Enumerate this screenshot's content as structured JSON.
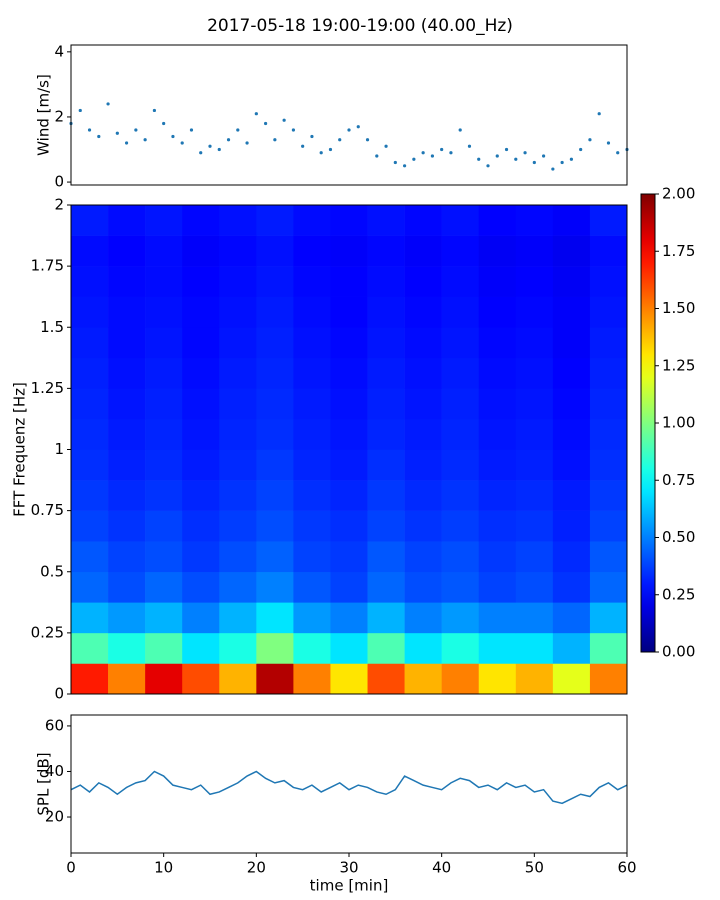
{
  "chart_data": [
    {
      "type": "scatter",
      "title": "2017-05-18 19:00-19:00 (40.00_Hz)",
      "ylabel": "Wind [m/s]",
      "color": "#1f77b4",
      "x": [
        0,
        1,
        2,
        3,
        4,
        5,
        6,
        7,
        8,
        9,
        10,
        11,
        12,
        13,
        14,
        15,
        16,
        17,
        18,
        19,
        20,
        21,
        22,
        23,
        24,
        25,
        26,
        27,
        28,
        29,
        30,
        31,
        32,
        33,
        34,
        35,
        36,
        37,
        38,
        39,
        40,
        41,
        42,
        43,
        44,
        45,
        46,
        47,
        48,
        49,
        50,
        51,
        52,
        53,
        54,
        55,
        56,
        57,
        58,
        59,
        60
      ],
      "values": [
        1.8,
        2.2,
        1.6,
        1.4,
        2.4,
        1.5,
        1.2,
        1.6,
        1.3,
        2.2,
        1.8,
        1.4,
        1.2,
        1.6,
        0.9,
        1.1,
        1.0,
        1.3,
        1.6,
        1.2,
        2.1,
        1.8,
        1.3,
        1.9,
        1.6,
        1.1,
        1.4,
        0.9,
        1.0,
        1.3,
        1.6,
        1.7,
        1.3,
        0.8,
        1.1,
        0.6,
        0.5,
        0.7,
        0.9,
        0.8,
        1.0,
        0.9,
        1.6,
        1.1,
        0.7,
        0.5,
        0.8,
        1.0,
        0.7,
        0.9,
        0.6,
        0.8,
        0.4,
        0.6,
        0.7,
        1.0,
        1.3,
        2.1,
        1.2,
        0.9,
        1.0
      ],
      "xlim": [
        0,
        60
      ],
      "ylim": [
        -0.09,
        4.21
      ],
      "yticks": [
        0,
        2,
        4
      ]
    },
    {
      "type": "heatmap",
      "ylabel": "FFT Frequenz [Hz]",
      "colormap": "jet",
      "xbins": [
        0,
        4,
        8,
        12,
        16,
        20,
        24,
        28,
        32,
        36,
        40,
        44,
        48,
        52,
        56,
        60
      ],
      "ybins": [
        0,
        0.125,
        0.25,
        0.375,
        0.5,
        0.625,
        0.75,
        0.875,
        1,
        1.125,
        1.25,
        1.375,
        1.5,
        1.625,
        1.75,
        1.875,
        2
      ],
      "values": [
        [
          1.7,
          1.5,
          1.8,
          1.6,
          1.4,
          1.9,
          1.5,
          1.3,
          1.6,
          1.4,
          1.5,
          1.3,
          1.4,
          1.2,
          1.5
        ],
        [
          0.9,
          0.8,
          0.9,
          0.7,
          0.8,
          1.0,
          0.8,
          0.7,
          0.9,
          0.7,
          0.8,
          0.7,
          0.7,
          0.6,
          0.9
        ],
        [
          0.6,
          0.55,
          0.6,
          0.5,
          0.6,
          0.7,
          0.55,
          0.5,
          0.6,
          0.5,
          0.55,
          0.5,
          0.5,
          0.45,
          0.6
        ],
        [
          0.45,
          0.4,
          0.45,
          0.4,
          0.45,
          0.5,
          0.42,
          0.38,
          0.45,
          0.4,
          0.42,
          0.38,
          0.4,
          0.35,
          0.45
        ],
        [
          0.42,
          0.38,
          0.4,
          0.36,
          0.4,
          0.44,
          0.38,
          0.36,
          0.42,
          0.38,
          0.4,
          0.36,
          0.38,
          0.33,
          0.42
        ],
        [
          0.38,
          0.35,
          0.38,
          0.34,
          0.37,
          0.4,
          0.36,
          0.34,
          0.38,
          0.35,
          0.37,
          0.34,
          0.35,
          0.31,
          0.38
        ],
        [
          0.36,
          0.33,
          0.35,
          0.32,
          0.35,
          0.38,
          0.34,
          0.32,
          0.36,
          0.33,
          0.35,
          0.32,
          0.33,
          0.3,
          0.36
        ],
        [
          0.34,
          0.31,
          0.33,
          0.3,
          0.33,
          0.36,
          0.32,
          0.3,
          0.34,
          0.31,
          0.33,
          0.3,
          0.31,
          0.28,
          0.34
        ],
        [
          0.33,
          0.3,
          0.32,
          0.29,
          0.32,
          0.34,
          0.31,
          0.29,
          0.32,
          0.3,
          0.32,
          0.29,
          0.3,
          0.27,
          0.33
        ],
        [
          0.32,
          0.29,
          0.31,
          0.28,
          0.31,
          0.33,
          0.3,
          0.28,
          0.31,
          0.29,
          0.31,
          0.28,
          0.29,
          0.26,
          0.32
        ],
        [
          0.31,
          0.28,
          0.3,
          0.27,
          0.3,
          0.32,
          0.29,
          0.27,
          0.3,
          0.28,
          0.3,
          0.27,
          0.28,
          0.25,
          0.31
        ],
        [
          0.3,
          0.27,
          0.29,
          0.26,
          0.29,
          0.31,
          0.28,
          0.26,
          0.29,
          0.27,
          0.29,
          0.26,
          0.27,
          0.24,
          0.3
        ],
        [
          0.29,
          0.27,
          0.28,
          0.26,
          0.28,
          0.3,
          0.27,
          0.25,
          0.28,
          0.26,
          0.28,
          0.25,
          0.26,
          0.24,
          0.29
        ],
        [
          0.28,
          0.26,
          0.27,
          0.25,
          0.27,
          0.29,
          0.26,
          0.25,
          0.27,
          0.25,
          0.27,
          0.24,
          0.25,
          0.23,
          0.28
        ],
        [
          0.27,
          0.25,
          0.27,
          0.24,
          0.26,
          0.28,
          0.25,
          0.24,
          0.26,
          0.24,
          0.26,
          0.23,
          0.24,
          0.22,
          0.27
        ],
        [
          0.3,
          0.27,
          0.29,
          0.26,
          0.28,
          0.3,
          0.27,
          0.26,
          0.28,
          0.26,
          0.28,
          0.25,
          0.26,
          0.24,
          0.3
        ]
      ],
      "xlim": [
        0,
        60
      ],
      "ylim": [
        0,
        2
      ],
      "yticks": [
        0,
        0.25,
        0.5,
        0.75,
        1,
        1.25,
        1.5,
        1.75,
        2
      ],
      "clim": [
        0,
        2
      ],
      "cticks": [
        {
          "value": 0,
          "label": "0.00"
        },
        {
          "value": 0.25,
          "label": "0.25"
        },
        {
          "value": 0.5,
          "label": "0.50"
        },
        {
          "value": 0.75,
          "label": "0.75"
        },
        {
          "value": 1,
          "label": "1.00"
        },
        {
          "value": 1.25,
          "label": "1.25"
        },
        {
          "value": 1.5,
          "label": "1.50"
        },
        {
          "value": 1.75,
          "label": "1.75"
        },
        {
          "value": 2,
          "label": "2.00"
        }
      ]
    },
    {
      "type": "line",
      "ylabel": "SPL [dB]",
      "xlabel": "time [min]",
      "color": "#1f77b4",
      "x": [
        0,
        1,
        2,
        3,
        4,
        5,
        6,
        7,
        8,
        9,
        10,
        11,
        12,
        13,
        14,
        15,
        16,
        17,
        18,
        19,
        20,
        21,
        22,
        23,
        24,
        25,
        26,
        27,
        28,
        29,
        30,
        31,
        32,
        33,
        34,
        35,
        36,
        37,
        38,
        39,
        40,
        41,
        42,
        43,
        44,
        45,
        46,
        47,
        48,
        49,
        50,
        51,
        52,
        53,
        54,
        55,
        56,
        57,
        58,
        59,
        60
      ],
      "values": [
        32,
        34,
        31,
        35,
        33,
        30,
        33,
        35,
        36,
        40,
        38,
        34,
        33,
        32,
        34,
        30,
        31,
        33,
        35,
        38,
        40,
        37,
        35,
        36,
        33,
        32,
        34,
        31,
        33,
        35,
        32,
        34,
        33,
        31,
        30,
        32,
        38,
        36,
        34,
        33,
        32,
        35,
        37,
        36,
        33,
        34,
        32,
        35,
        33,
        34,
        31,
        32,
        27,
        26,
        28,
        30,
        29,
        33,
        35,
        32,
        34
      ],
      "xlim": [
        0,
        60
      ],
      "ylim": [
        4.2,
        64.8
      ],
      "xticks": [
        0,
        10,
        20,
        30,
        40,
        50,
        60
      ],
      "yticks": [
        20,
        40,
        60
      ]
    }
  ]
}
